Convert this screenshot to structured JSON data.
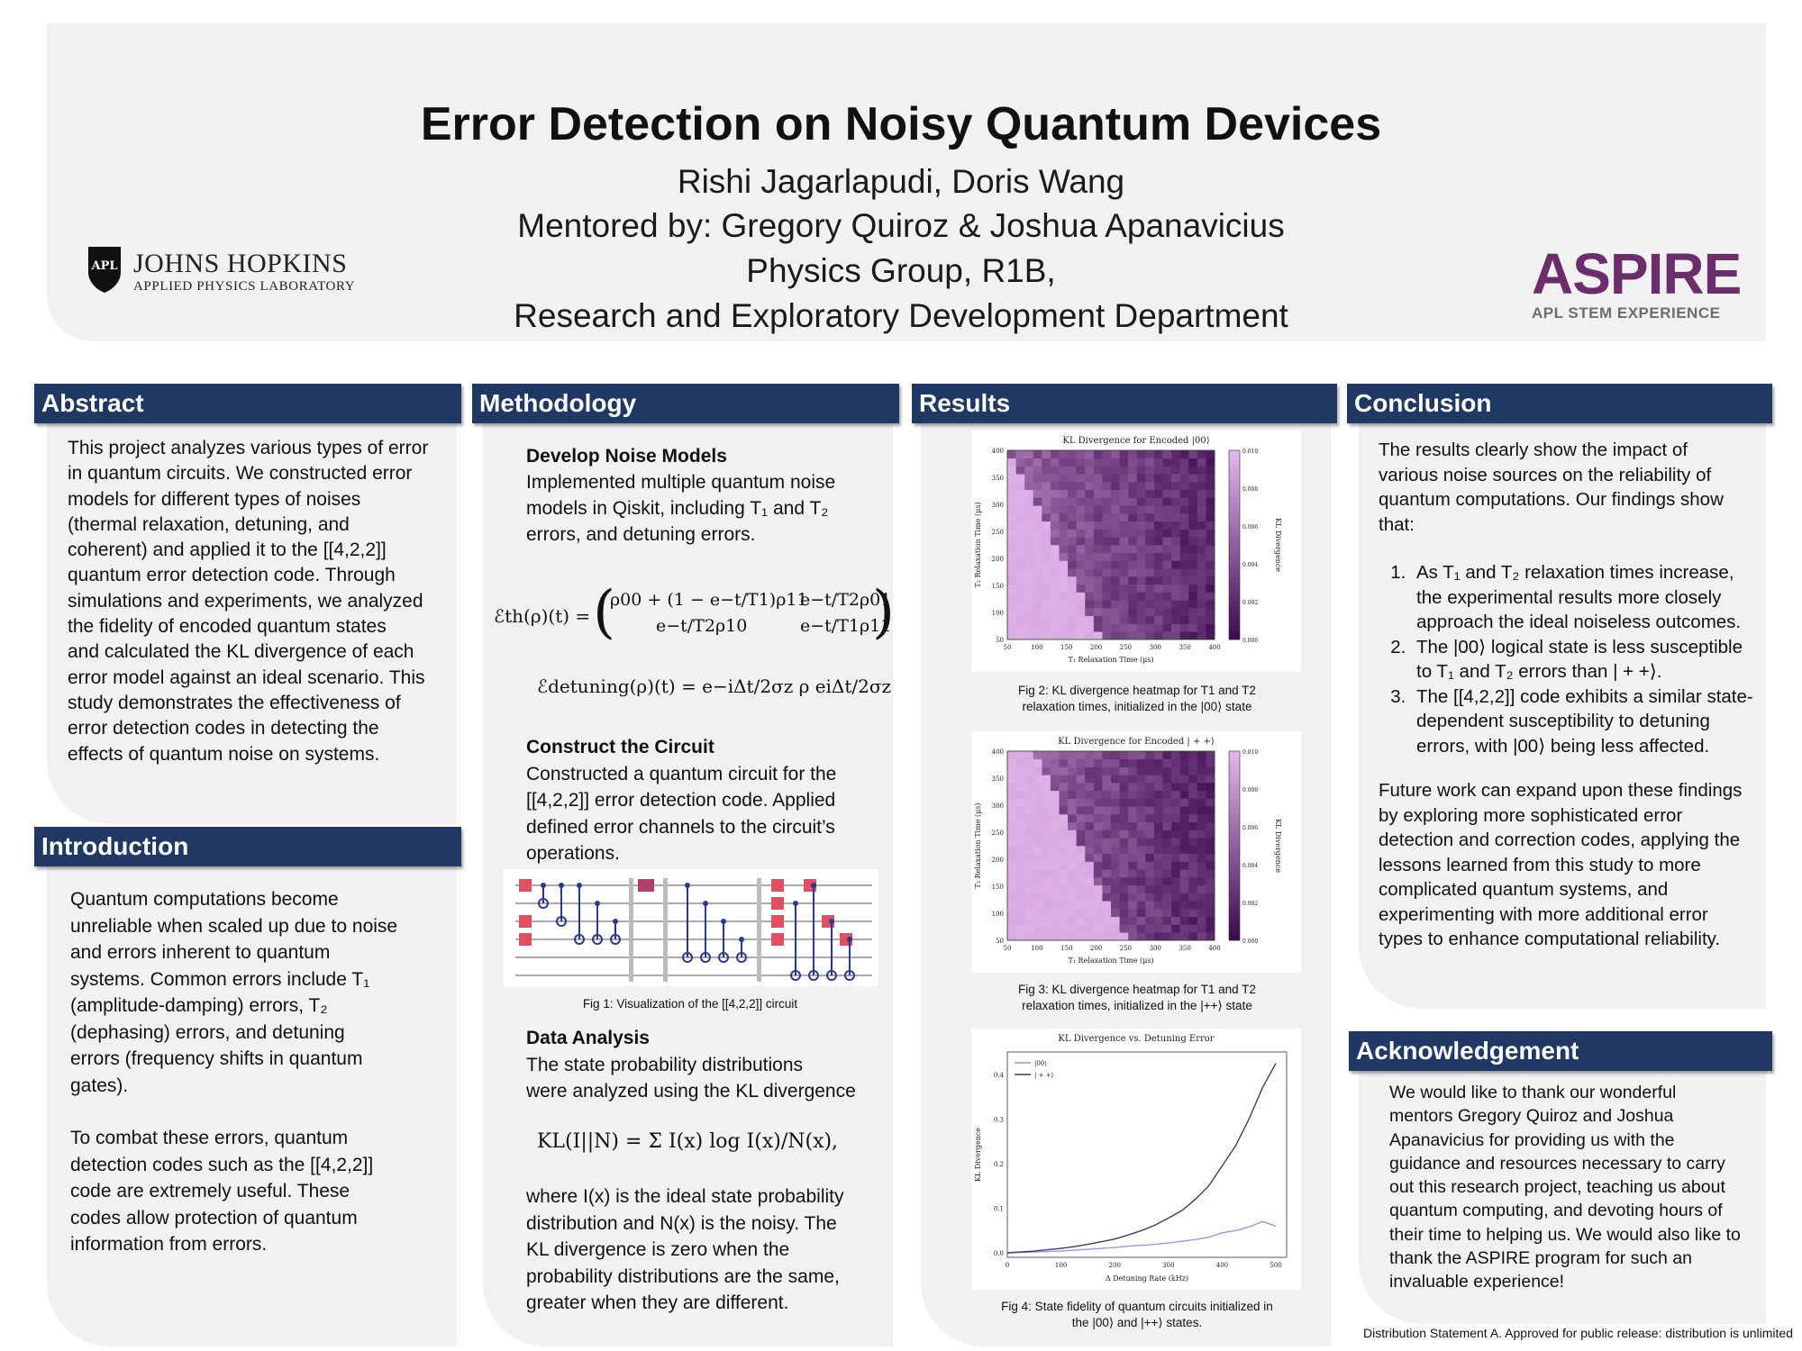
{
  "header": {
    "title": "Error Detection on Noisy Quantum Devices",
    "authors": "Rishi Jagarlapudi, Doris Wang",
    "mentors": "Mentored by: Gregory Quiroz & Joshua Apanavicius",
    "group": "Physics Group, R1B,",
    "department": "Research and Exploratory Development Department",
    "jhu_logo_text": "JOHNS HOPKINS",
    "jhu_logo_sub": "APPLIED PHYSICS LABORATORY",
    "aspire_logo": "ASPIRE",
    "aspire_sub": "APL STEM EXPERIENCE"
  },
  "abstract": {
    "heading": "Abstract",
    "lines": [
      "This project analyzes various types of error",
      "in quantum circuits.  We constructed error",
      "models for different types of noises",
      "(thermal relaxation, detuning, and",
      "coherent) and applied it to the [[4,2,2]]",
      "quantum error detection code. Through",
      "simulations and experiments, we analyzed",
      "the fidelity of encoded quantum states",
      "and calculated the KL divergence of each",
      "error model against an ideal scenario. This",
      "study demonstrates the effectiveness of",
      "error detection codes in detecting the",
      "effects of quantum noise on systems."
    ]
  },
  "introduction": {
    "heading": "Introduction",
    "lines": [
      "Quantum computations become",
      "unreliable when scaled up due to noise",
      "and errors inherent to quantum",
      "systems. Common errors include T₁",
      "(amplitude-damping)  errors, T₂",
      "(dephasing)  errors, and detuning",
      "errors (frequency shifts in quantum",
      "gates)."
    ],
    "lines2": [
      "To combat these errors, quantum",
      "detection codes such as the [[4,2,2]]",
      "code are extremely useful. These",
      "codes allow protection of quantum",
      "information from errors."
    ]
  },
  "methodology": {
    "heading": "Methodology",
    "sub1": "Develop Noise Models",
    "sub1_lines": [
      "Implemented multiple quantum noise",
      "models in Qiskit, including T₁ and T₂",
      "errors, and detuning errors."
    ],
    "eq1_lhs": "ℰth(ρ)(t) =",
    "eq1_r1c1": "ρ00 + (1 − e−t/T1)ρ11",
    "eq1_r1c2": "e−t/T2ρ01",
    "eq1_r2c1": "e−t/T2ρ10",
    "eq1_r2c2": "e−t/T1ρ11",
    "eq2": "ℰdetuning(ρ)(t) = e−iΔt/2σz ρ eiΔt/2σz",
    "sub2": "Construct the Circuit",
    "sub2_lines": [
      "Constructed a quantum circuit for the",
      "[[4,2,2]] error detection code. Applied",
      "defined error channels to the circuit’s",
      "operations."
    ],
    "fig1_caption": "Fig 1: Visualization of the [[4,2,2]] circuit",
    "sub3": "Data Analysis",
    "sub3_lines": [
      "The state probability distributions",
      "were analyzed using the KL divergence"
    ],
    "eq3": "KL(I||N) = Σ I(x) log I(x)/N(x),",
    "sub3_lines2": [
      "where I(x) is the ideal state probability",
      "distribution  and N(x) is the noisy. The",
      "KL divergence is zero when the",
      "probability distributions are the same,",
      "greater when they are different."
    ]
  },
  "results": {
    "heading": "Results",
    "fig2_caption": [
      "Fig 2: KL divergence heatmap for T1 and T2",
      "relaxation times, initialized in the |00⟩ state"
    ],
    "fig3_caption": [
      "Fig 3: KL divergence heatmap for T1 and T2",
      "relaxation times, initialized in the |++⟩ state"
    ],
    "fig4_caption": [
      "Fig 4: State fidelity of quantum circuits initialized in",
      "the |00⟩ and |++⟩ states."
    ]
  },
  "conclusion": {
    "heading": "Conclusion",
    "intro_lines": [
      "The results clearly show the impact of",
      "various noise sources on the reliability of",
      "quantum computations. Our findings show",
      "that:"
    ],
    "items": [
      "As T₁ and T₂ relaxation times increase, the experimental results more closely approach the ideal noiseless outcomes.",
      "The |00⟩ logical state is less susceptible to T₁ and T₂ errors than | + +⟩.",
      "The [[4,2,2]] code exhibits a similar state-dependent susceptibility to detuning errors, with |00⟩ being less affected."
    ],
    "future_lines": [
      "Future work can expand upon these findings",
      "by exploring more sophisticated error",
      "detection and correction codes, applying the",
      "lessons learned from this study to more",
      "complicated quantum systems, and",
      "experimenting with more additional error",
      "types to enhance computational reliability."
    ]
  },
  "acknowledgement": {
    "heading": "Acknowledgement",
    "lines": [
      "We would like to thank our wonderful",
      "mentors Gregory Quiroz and Joshua",
      "Apanavicius for providing us with the",
      "guidance and resources necessary to carry",
      "out this research project, teaching us about",
      "quantum computing, and devoting hours of",
      "their time to helping us. We would also like to",
      "thank the ASPIRE program for such an",
      "invaluable experience!"
    ]
  },
  "footer": "Distribution Statement A. Approved for public release: distribution is unlimited",
  "chart_data": [
    {
      "type": "heatmap",
      "title": "KL Divergence for Encoded |00⟩",
      "xlabel": "T₁ Relaxation Time (μs)",
      "ylabel": "T₂ Relaxation Time (μs)",
      "colorbar_label": "KL Divergence",
      "x_ticks": [
        "50",
        "100",
        "150",
        "200",
        "250",
        "300",
        "350",
        "400"
      ],
      "y_ticks": [
        "50",
        "100",
        "150",
        "200",
        "250",
        "300",
        "350",
        "400"
      ],
      "colorbar_ticks": [
        "0.000",
        "0.002",
        "0.004",
        "0.006",
        "0.008",
        "0.010"
      ],
      "xlim": [
        50,
        400
      ],
      "ylim": [
        50,
        400
      ],
      "clim": [
        0,
        0.01
      ]
    },
    {
      "type": "heatmap",
      "title": "KL Divergence for Encoded | + +⟩",
      "xlabel": "T₁ Relaxation Time (μs)",
      "ylabel": "T₂ Relaxation Time (μs)",
      "colorbar_label": "KL Divergence",
      "x_ticks": [
        "50",
        "100",
        "150",
        "200",
        "250",
        "300",
        "350",
        "400"
      ],
      "y_ticks": [
        "50",
        "100",
        "150",
        "200",
        "250",
        "300",
        "350",
        "400"
      ],
      "colorbar_ticks": [
        "0.000",
        "0.002",
        "0.004",
        "0.006",
        "0.008",
        "0.010"
      ],
      "xlim": [
        50,
        400
      ],
      "ylim": [
        50,
        400
      ],
      "clim": [
        0,
        0.01
      ]
    },
    {
      "type": "line",
      "title": "KL Divergence vs. Detuning Error",
      "xlabel": "Δ Detuning Rate (kHz)",
      "ylabel": "KL Divergence",
      "x_ticks": [
        "0",
        "100",
        "200",
        "300",
        "400",
        "500"
      ],
      "y_ticks": [
        "0.0",
        "0.1",
        "0.2",
        "0.3",
        "0.4"
      ],
      "xlim": [
        0,
        520
      ],
      "ylim": [
        -0.01,
        0.45
      ],
      "x": [
        0,
        25,
        50,
        75,
        100,
        125,
        150,
        175,
        200,
        225,
        250,
        275,
        300,
        325,
        350,
        375,
        400,
        425,
        450,
        475,
        500
      ],
      "series": [
        {
          "name": "|00⟩",
          "color": "#b08be0",
          "values": [
            0.0,
            0.001,
            0.002,
            0.003,
            0.004,
            0.006,
            0.008,
            0.01,
            0.012,
            0.015,
            0.017,
            0.019,
            0.022,
            0.026,
            0.03,
            0.035,
            0.045,
            0.05,
            0.058,
            0.07,
            0.06
          ]
        },
        {
          "name": "| + +⟩",
          "color": "#3b3b7a",
          "values": [
            0.0,
            0.002,
            0.004,
            0.007,
            0.01,
            0.014,
            0.019,
            0.025,
            0.031,
            0.04,
            0.05,
            0.062,
            0.078,
            0.095,
            0.12,
            0.15,
            0.195,
            0.24,
            0.3,
            0.37,
            0.425
          ]
        }
      ]
    }
  ]
}
